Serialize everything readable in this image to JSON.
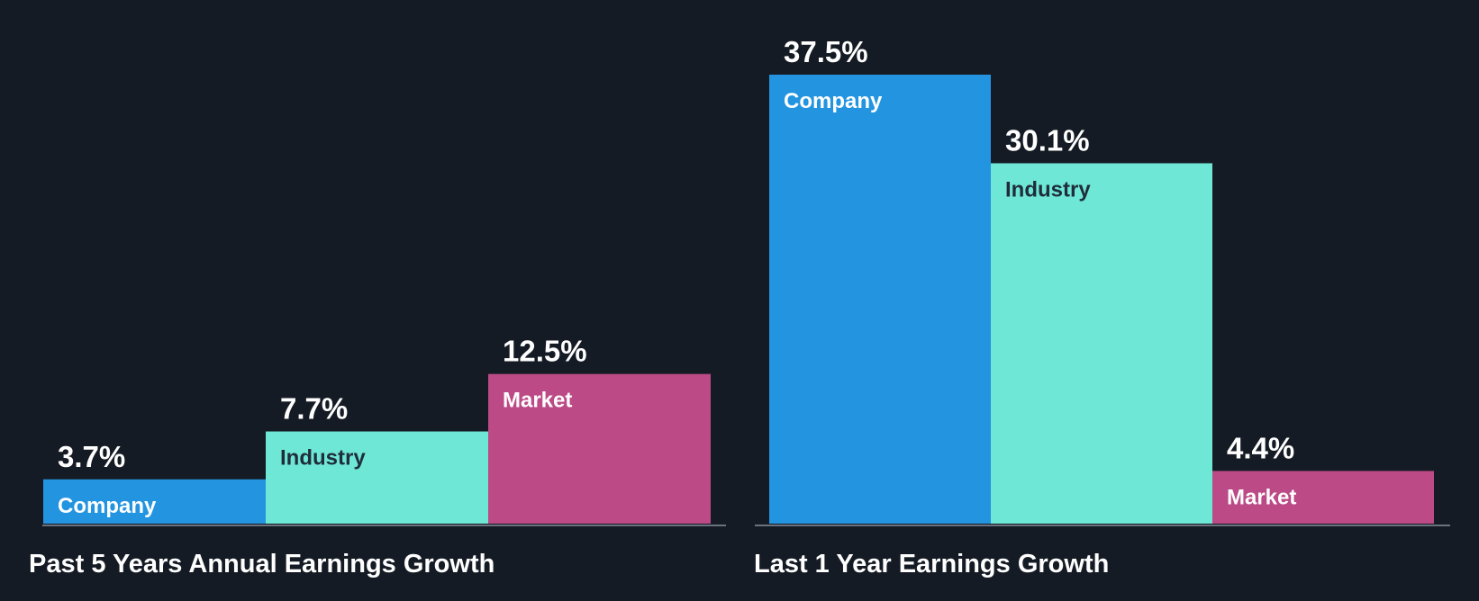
{
  "colors": {
    "background": "#151b24",
    "company": "#2394e0",
    "industry": "#6ee7d6",
    "market": "#bb4a86",
    "baseline": "#6b7280",
    "text_light": "#ffffff",
    "text_dark": "#1f2d3a"
  },
  "chart_data": [
    {
      "type": "bar",
      "title": "Past 5 Years Annual Earnings Growth",
      "categories": [
        "Company",
        "Industry",
        "Market"
      ],
      "values": [
        3.7,
        7.7,
        12.5
      ],
      "value_labels": [
        "3.7%",
        "7.7%",
        "12.5%"
      ],
      "unit": "%",
      "ylim": [
        0,
        37.5
      ],
      "xlabel": "",
      "ylabel": "",
      "grid": false
    },
    {
      "type": "bar",
      "title": "Last 1 Year Earnings Growth",
      "categories": [
        "Company",
        "Industry",
        "Market"
      ],
      "values": [
        37.5,
        30.1,
        4.4
      ],
      "value_labels": [
        "37.5%",
        "30.1%",
        "4.4%"
      ],
      "unit": "%",
      "ylim": [
        0,
        37.5
      ],
      "xlabel": "",
      "ylabel": "",
      "grid": false
    }
  ]
}
